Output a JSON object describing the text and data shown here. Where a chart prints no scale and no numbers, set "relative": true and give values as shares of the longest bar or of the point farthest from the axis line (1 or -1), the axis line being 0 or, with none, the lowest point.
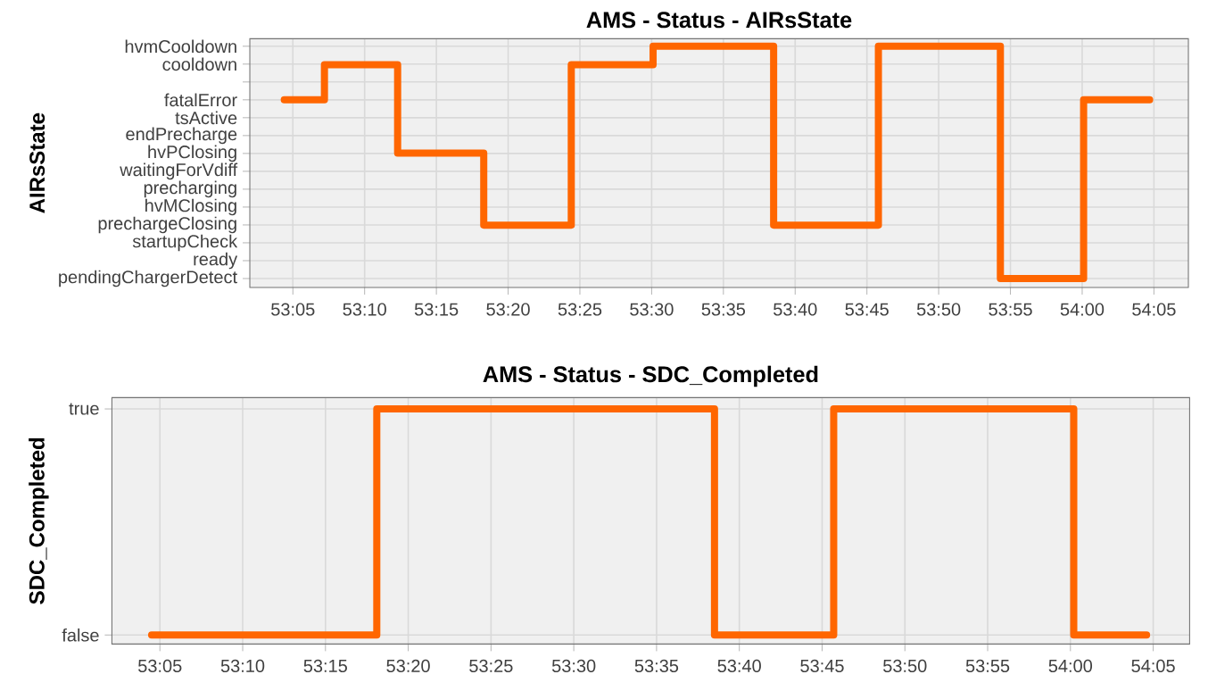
{
  "chart_data": [
    {
      "type": "step",
      "title": "AMS - Status - AIRsState",
      "ylabel": "AIRsState",
      "color": "#ff6600",
      "grid": true,
      "x": [
        3184.4,
        3187.2,
        3192.3,
        3198.3,
        3204.4,
        3210.1,
        3218.5,
        3225.8,
        3234.3,
        3240.1,
        3244.7
      ],
      "values": [
        0.77,
        0.92,
        0.54,
        0.23,
        0.92,
        1,
        0.23,
        1,
        0,
        0.77,
        0.77
      ],
      "relative": true,
      "xlim": [
        3182.0,
        3247.4
      ],
      "xticks": [
        {
          "value": 3185,
          "label": "53:05"
        },
        {
          "value": 3190,
          "label": "53:10"
        },
        {
          "value": 3195,
          "label": "53:15"
        },
        {
          "value": 3200,
          "label": "53:20"
        },
        {
          "value": 3205,
          "label": "53:25"
        },
        {
          "value": 3210,
          "label": "53:30"
        },
        {
          "value": 3215,
          "label": "53:35"
        },
        {
          "value": 3220,
          "label": "53:40"
        },
        {
          "value": 3225,
          "label": "53:45"
        },
        {
          "value": 3230,
          "label": "53:50"
        },
        {
          "value": 3235,
          "label": "53:55"
        },
        {
          "value": 3240,
          "label": "54:00"
        },
        {
          "value": 3245,
          "label": "54:05"
        }
      ],
      "y_categories": [
        "hvmCooldown",
        "cooldown",
        null,
        "fatalError",
        "tsActive",
        "endPrecharge",
        "hvPClosing",
        "waitingForVdiff",
        "precharging",
        "hvMClosing",
        "prechargeClosing",
        "startupCheck",
        "ready",
        "pendingChargerDetect"
      ]
    },
    {
      "type": "step",
      "title": "AMS - Status - SDC_Completed",
      "ylabel": "SDC_Completed",
      "color": "#ff6600",
      "grid": true,
      "x": [
        3184.5,
        3198.1,
        3218.5,
        3225.7,
        3240.2,
        3244.6
      ],
      "values": [
        0,
        1,
        0,
        1,
        0,
        0
      ],
      "relative": true,
      "xlim": [
        3182.1,
        3247.2
      ],
      "xticks": [
        {
          "value": 3185,
          "label": "53:05"
        },
        {
          "value": 3190,
          "label": "53:10"
        },
        {
          "value": 3195,
          "label": "53:15"
        },
        {
          "value": 3200,
          "label": "53:20"
        },
        {
          "value": 3205,
          "label": "53:25"
        },
        {
          "value": 3210,
          "label": "53:30"
        },
        {
          "value": 3215,
          "label": "53:35"
        },
        {
          "value": 3220,
          "label": "53:40"
        },
        {
          "value": 3225,
          "label": "53:45"
        },
        {
          "value": 3230,
          "label": "53:50"
        },
        {
          "value": 3235,
          "label": "53:55"
        },
        {
          "value": 3240,
          "label": "54:00"
        },
        {
          "value": 3245,
          "label": "54:05"
        }
      ],
      "y_categories": [
        "true",
        "false"
      ]
    }
  ]
}
